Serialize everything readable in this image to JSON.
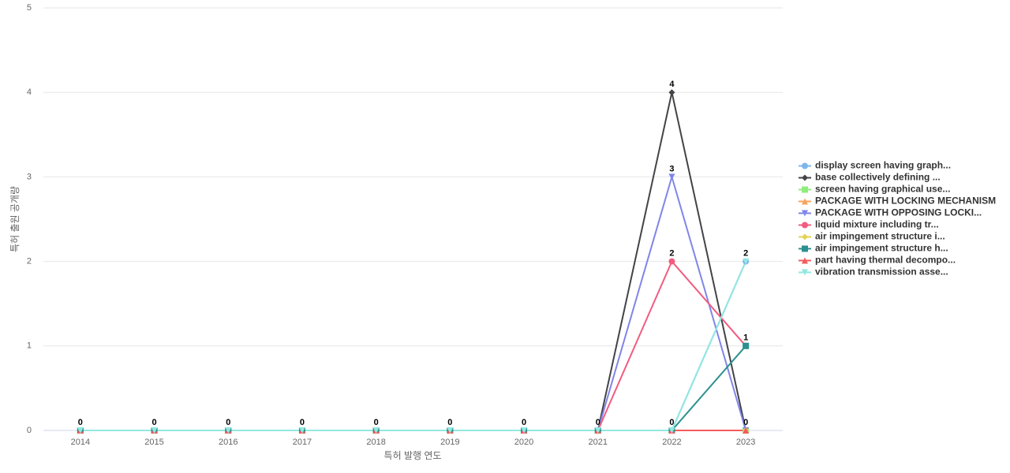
{
  "chart_data": {
    "type": "line",
    "x_label": "특허 발행 연도",
    "y_label": "특허 출원 공개량",
    "categories": [
      "2014",
      "2015",
      "2016",
      "2017",
      "2018",
      "2019",
      "2020",
      "2021",
      "2022",
      "2023"
    ],
    "ylim": [
      0,
      5
    ],
    "yticks": [
      0,
      1,
      2,
      3,
      4,
      5
    ],
    "grid": true,
    "legend": "right",
    "series": [
      {
        "name": "display screen having graph...",
        "color": "#7cb5ec",
        "marker": "circle",
        "values": [
          0,
          0,
          0,
          0,
          0,
          0,
          0,
          0,
          0,
          2
        ]
      },
      {
        "name": "base collectively defining ...",
        "color": "#434348",
        "marker": "diamond",
        "values": [
          0,
          0,
          0,
          0,
          0,
          0,
          0,
          0,
          4,
          0
        ]
      },
      {
        "name": "screen having graphical use...",
        "color": "#90ed7d",
        "marker": "square",
        "values": [
          0,
          0,
          0,
          0,
          0,
          0,
          0,
          0,
          0,
          0
        ]
      },
      {
        "name": "PACKAGE WITH LOCKING MECHANISM",
        "color": "#f7a35c",
        "marker": "triangle",
        "values": [
          0,
          0,
          0,
          0,
          0,
          0,
          0,
          0,
          0,
          0
        ]
      },
      {
        "name": "PACKAGE WITH OPPOSING LOCKI...",
        "color": "#8085e9",
        "marker": "triangle-down",
        "values": [
          0,
          0,
          0,
          0,
          0,
          0,
          0,
          0,
          3,
          0
        ]
      },
      {
        "name": "liquid mixture including tr...",
        "color": "#f15c80",
        "marker": "circle",
        "values": [
          0,
          0,
          0,
          0,
          0,
          0,
          0,
          0,
          2,
          1
        ]
      },
      {
        "name": "air impingement structure i...",
        "color": "#e4d354",
        "marker": "diamond",
        "values": [
          0,
          0,
          0,
          0,
          0,
          0,
          0,
          0,
          0,
          0
        ]
      },
      {
        "name": "air impingement structure h...",
        "color": "#2b908f",
        "marker": "square",
        "values": [
          0,
          0,
          0,
          0,
          0,
          0,
          0,
          0,
          0,
          1
        ]
      },
      {
        "name": "part having thermal decompo...",
        "color": "#f45b5b",
        "marker": "triangle",
        "values": [
          0,
          0,
          0,
          0,
          0,
          0,
          0,
          0,
          0,
          0
        ]
      },
      {
        "name": "vibration transmission asse...",
        "color": "#91e8e1",
        "marker": "triangle-down",
        "values": [
          0,
          0,
          0,
          0,
          0,
          0,
          0,
          0,
          0,
          2
        ]
      }
    ]
  }
}
